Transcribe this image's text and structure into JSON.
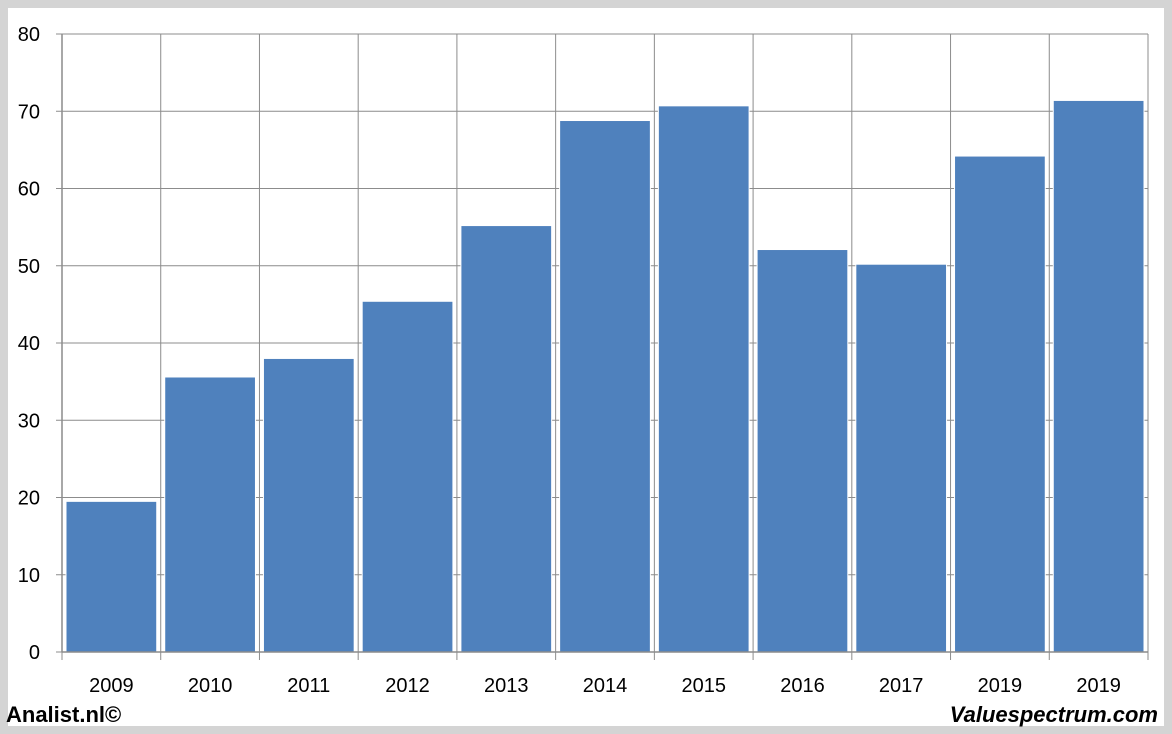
{
  "footer": {
    "left_credit": "Analist.nl©",
    "right_credit": "Valuespectrum.com"
  },
  "colors": {
    "bar": "#4f81bd",
    "grid": "#8c8c8c",
    "frame": "#d4d4d4"
  },
  "chart_data": {
    "type": "bar",
    "title": "",
    "xlabel": "",
    "ylabel": "",
    "categories": [
      "2009",
      "2010",
      "2011",
      "2012",
      "2013",
      "2014",
      "2015",
      "2016",
      "2017",
      "2019",
      "2019"
    ],
    "values": [
      19.5,
      35.6,
      38.0,
      45.4,
      55.2,
      68.8,
      70.7,
      52.1,
      50.2,
      64.2,
      71.4
    ],
    "ylim": [
      0,
      80
    ],
    "yticks": [
      0,
      10,
      20,
      30,
      40,
      50,
      60,
      70,
      80
    ],
    "grid": true,
    "legend": "none"
  }
}
